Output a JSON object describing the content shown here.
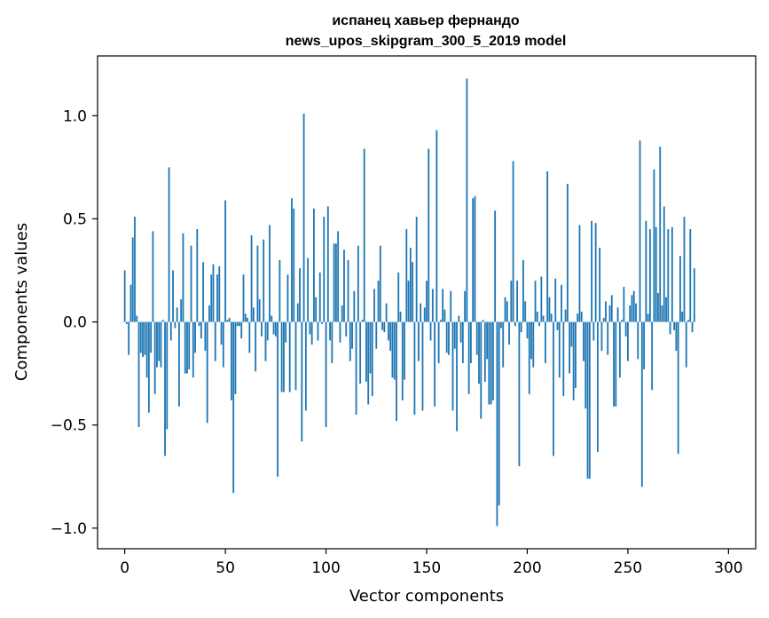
{
  "chart_data": {
    "type": "bar",
    "title": "испанец хавьер фернандо",
    "subtitle": "news_upos_skipgram_300_5_2019 model",
    "xlabel": "Vector components",
    "ylabel": "Components values",
    "xlim": [
      -13.5,
      313.5
    ],
    "ylim": [
      -1.1,
      1.29
    ],
    "xticks": [
      0,
      50,
      100,
      150,
      200,
      250,
      300
    ],
    "xtick_labels": [
      "0",
      "50",
      "100",
      "150",
      "200",
      "250",
      "300"
    ],
    "yticks": [
      -1.0,
      -0.5,
      0.0,
      0.5,
      1.0
    ],
    "ytick_labels": [
      "−1.0",
      "−0.5",
      "0.0",
      "0.5",
      "1.0"
    ],
    "grid": false,
    "bar_color": "#1f77b4",
    "values": [
      0.25,
      -0.01,
      -0.16,
      0.18,
      0.41,
      0.51,
      0.03,
      -0.51,
      -0.15,
      -0.17,
      -0.16,
      -0.27,
      -0.44,
      -0.15,
      0.44,
      -0.35,
      -0.22,
      -0.19,
      -0.22,
      0.01,
      -0.65,
      -0.52,
      0.75,
      -0.09,
      0.25,
      -0.03,
      0.07,
      -0.41,
      0.11,
      0.43,
      -0.25,
      -0.25,
      -0.23,
      0.37,
      -0.27,
      -0.15,
      0.45,
      -0.02,
      -0.08,
      0.29,
      -0.14,
      -0.49,
      0.08,
      0.23,
      0.28,
      -0.19,
      0.23,
      0.27,
      -0.11,
      -0.22,
      0.59,
      0.01,
      0.02,
      -0.38,
      -0.83,
      -0.35,
      -0.02,
      -0.02,
      -0.08,
      0.23,
      0.04,
      0.02,
      -0.15,
      0.42,
      0.07,
      -0.24,
      0.37,
      0.11,
      -0.07,
      0.4,
      -0.19,
      -0.09,
      0.47,
      0.03,
      -0.06,
      -0.07,
      -0.75,
      0.3,
      -0.34,
      -0.34,
      -0.1,
      0.23,
      -0.34,
      0.6,
      0.55,
      -0.33,
      0.09,
      0.26,
      -0.58,
      1.01,
      -0.43,
      0.31,
      -0.06,
      -0.11,
      0.55,
      0.12,
      -0.09,
      0.24,
      -0.01,
      0.51,
      -0.51,
      0.56,
      -0.09,
      -0.2,
      0.38,
      0.38,
      0.44,
      -0.1,
      0.08,
      0.35,
      -0.07,
      0.3,
      -0.19,
      -0.13,
      0.15,
      -0.45,
      0.37,
      -0.3,
      0.01,
      0.84,
      -0.29,
      -0.4,
      -0.25,
      -0.36,
      0.16,
      -0.13,
      0.2,
      0.37,
      -0.04,
      -0.05,
      0.09,
      -0.09,
      -0.14,
      -0.27,
      -0.28,
      -0.48,
      0.24,
      0.05,
      -0.38,
      -0.28,
      0.45,
      0.2,
      0.36,
      0.29,
      -0.45,
      0.51,
      -0.19,
      0.09,
      -0.43,
      0.07,
      0.2,
      0.84,
      -0.09,
      0.16,
      -0.41,
      0.93,
      -0.2,
      0.01,
      0.16,
      0.06,
      -0.15,
      -0.16,
      0.15,
      -0.43,
      -0.13,
      -0.53,
      0.03,
      -0.1,
      -0.2,
      0.15,
      1.18,
      -0.35,
      -0.2,
      0.6,
      0.61,
      -0.16,
      -0.3,
      -0.47,
      0.01,
      -0.29,
      -0.18,
      -0.4,
      -0.4,
      -0.38,
      0.54,
      -0.99,
      -0.89,
      -0.03,
      -0.22,
      0.12,
      0.1,
      -0.11,
      0.2,
      0.78,
      -0.02,
      0.2,
      -0.7,
      -0.05,
      0.3,
      0.1,
      -0.08,
      -0.35,
      -0.18,
      -0.22,
      0.2,
      0.05,
      -0.02,
      0.22,
      0.03,
      -0.2,
      0.73,
      0.12,
      0.04,
      -0.65,
      0.21,
      -0.04,
      -0.27,
      0.18,
      -0.36,
      0.06,
      0.67,
      -0.25,
      -0.12,
      -0.38,
      -0.32,
      0.04,
      0.47,
      0.05,
      -0.19,
      -0.42,
      -0.76,
      -0.76,
      0.49,
      -0.09,
      0.48,
      -0.63,
      0.36,
      -0.14,
      0.02,
      0.1,
      -0.16,
      0.08,
      0.13,
      -0.41,
      -0.41,
      0.07,
      -0.27,
      0.01,
      0.17,
      -0.07,
      -0.19,
      0.08,
      0.13,
      0.15,
      0.09,
      -0.18,
      0.88,
      -0.8,
      -0.23,
      0.49,
      0.04,
      0.45,
      -0.33,
      0.74,
      0.46,
      0.14,
      0.85,
      0.08,
      0.56,
      0.12,
      0.45,
      -0.06,
      0.46,
      -0.04,
      -0.14,
      -0.64,
      0.32,
      0.05,
      0.51,
      -0.22,
      0.01,
      0.45,
      -0.05,
      0.26
    ]
  }
}
